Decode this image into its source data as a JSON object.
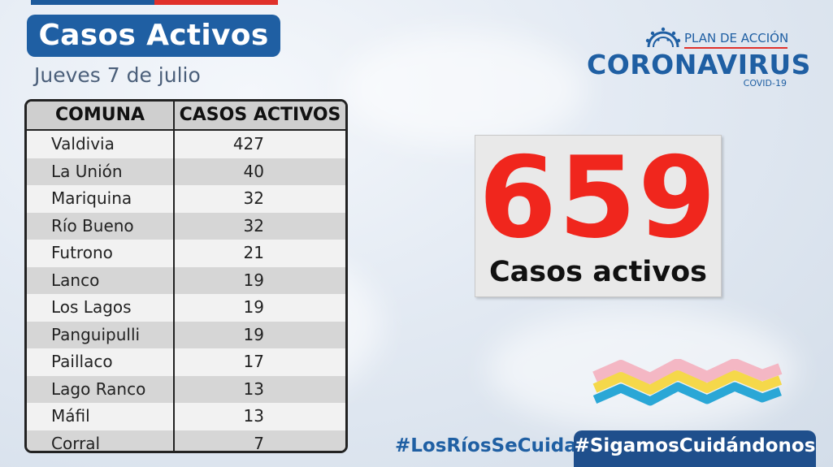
{
  "header": {
    "title": "Casos Activos",
    "date": "Jueves 7 de julio"
  },
  "logo": {
    "plan": "PLAN DE ACCIÓN",
    "main": "CORONAVIRUS",
    "sub": "COVID-19"
  },
  "table": {
    "col1": "COMUNA",
    "col2": "CASOS ACTIVOS",
    "rows": [
      {
        "comuna": "Valdivia",
        "casos": "427"
      },
      {
        "comuna": "La Unión",
        "casos": "40"
      },
      {
        "comuna": "Mariquina",
        "casos": "32"
      },
      {
        "comuna": "Río Bueno",
        "casos": "32"
      },
      {
        "comuna": "Futrono",
        "casos": "21"
      },
      {
        "comuna": "Lanco",
        "casos": "19"
      },
      {
        "comuna": "Los Lagos",
        "casos": "19"
      },
      {
        "comuna": "Panguipulli",
        "casos": "19"
      },
      {
        "comuna": "Paillaco",
        "casos": "17"
      },
      {
        "comuna": "Lago Ranco",
        "casos": "13"
      },
      {
        "comuna": "Máfil",
        "casos": "13"
      },
      {
        "comuna": "Corral",
        "casos": "7"
      }
    ]
  },
  "total": {
    "value": "659",
    "label": "Casos activos"
  },
  "footer": {
    "hashtag1": "#LosRíosSeCuida",
    "hashtag2": "#SigamosCuidándonos"
  },
  "colors": {
    "brand_blue": "#1f5fa3",
    "accent_red": "#f0261d",
    "wave_pink": "#f4b7c4",
    "wave_yellow": "#f5d84a",
    "wave_cyan": "#2aa7d6"
  }
}
